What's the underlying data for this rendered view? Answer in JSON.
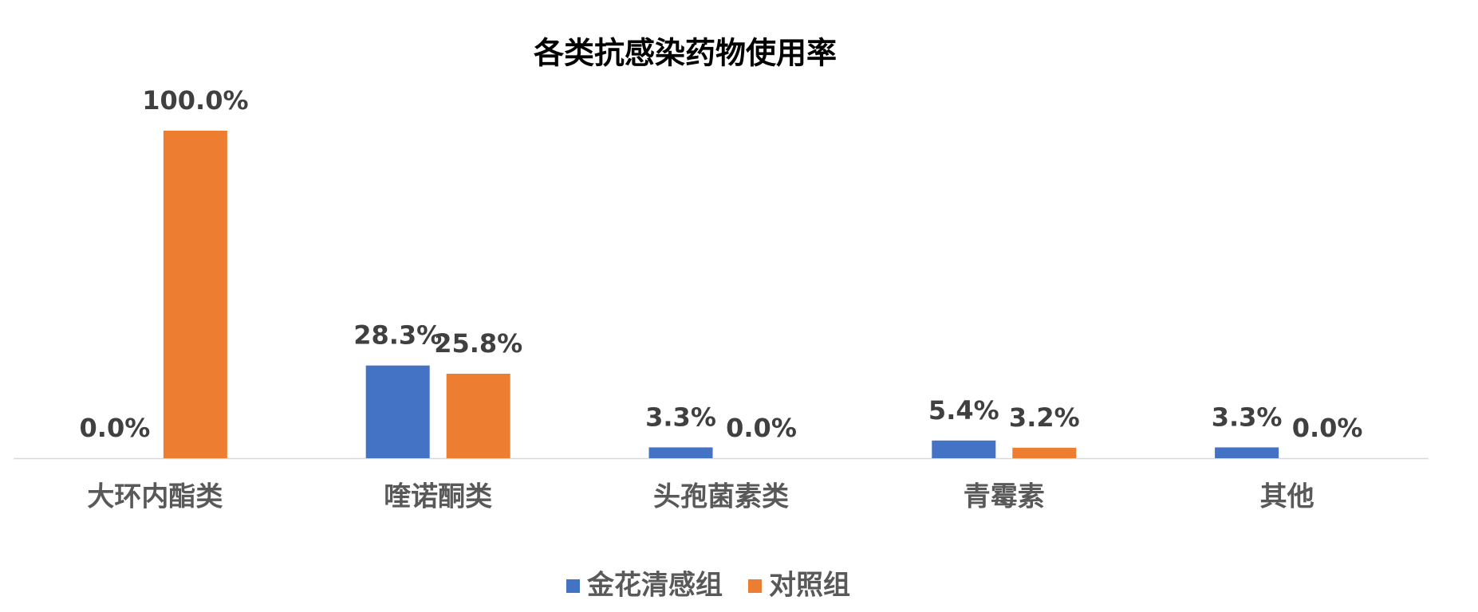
{
  "chart_data": {
    "type": "bar",
    "title": "各类抗感染药物使用率",
    "categories": [
      "大环内酯类",
      "喹诺酮类",
      "头孢菌素类",
      "青霉素",
      "其他"
    ],
    "series": [
      {
        "name": "金花清感组",
        "color": "#4472c4",
        "values": [
          0.0,
          28.3,
          3.3,
          5.4,
          3.3
        ],
        "value_labels": [
          "0.0%",
          "28.3%",
          "3.3%",
          "5.4%",
          "3.3%"
        ]
      },
      {
        "name": "对照组",
        "color": "#ed7d31",
        "values": [
          100.0,
          25.8,
          0.0,
          3.2,
          0.0
        ],
        "value_labels": [
          "100.0%",
          "25.8%",
          "0.0%",
          "3.2%",
          "0.0%"
        ]
      }
    ],
    "legend": "bottom"
  }
}
